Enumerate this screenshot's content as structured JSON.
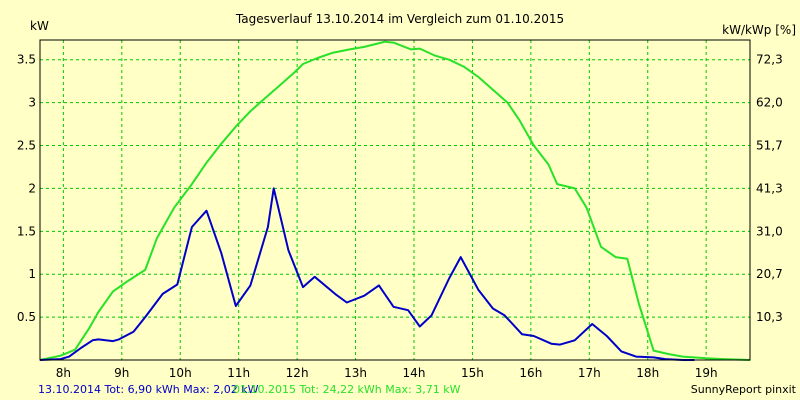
{
  "chart_data": {
    "type": "line",
    "title": "Tagesverlauf 13.10.2014 im Vergleich zum 01.10.2015",
    "ylabel": "kW",
    "ylabel_right": "kW/kWp [%]",
    "ylim": [
      0,
      3.73
    ],
    "xlim": [
      7.6,
      19.75
    ],
    "yticks": [
      "0.5",
      "1",
      "1.5",
      "2",
      "2.5",
      "3",
      "3.5"
    ],
    "yticks_right": [
      "10,3",
      "20,7",
      "31,0",
      "41,3",
      "51,7",
      "62,0",
      "72,3"
    ],
    "xticks": [
      "8h",
      "9h",
      "10h",
      "11h",
      "12h",
      "13h",
      "14h",
      "15h",
      "16h",
      "17h",
      "18h",
      "19h"
    ],
    "grid": true,
    "series": [
      {
        "name": "13.10.2014",
        "color": "#0000c8",
        "x": [
          7.6,
          7.95,
          8.1,
          8.3,
          8.5,
          8.6,
          8.85,
          8.95,
          9.2,
          9.4,
          9.7,
          9.95,
          10.2,
          10.45,
          10.7,
          10.95,
          11.2,
          11.5,
          11.6,
          11.85,
          12.1,
          12.3,
          12.65,
          12.85,
          13.15,
          13.4,
          13.65,
          13.9,
          14.1,
          14.3,
          14.6,
          14.8,
          15.1,
          15.35,
          15.55,
          15.85,
          16.05,
          16.35,
          16.5,
          16.75,
          17.05,
          17.3,
          17.55,
          17.8,
          18.1,
          18.3,
          18.6,
          18.8
        ],
        "values": [
          0,
          0.01,
          0.04,
          0.14,
          0.23,
          0.24,
          0.22,
          0.24,
          0.33,
          0.5,
          0.77,
          0.88,
          1.55,
          1.74,
          1.25,
          0.63,
          0.87,
          1.55,
          2.0,
          1.28,
          0.85,
          0.97,
          0.77,
          0.67,
          0.75,
          0.87,
          0.62,
          0.58,
          0.39,
          0.52,
          0.95,
          1.2,
          0.82,
          0.6,
          0.52,
          0.3,
          0.28,
          0.19,
          0.18,
          0.23,
          0.42,
          0.28,
          0.1,
          0.04,
          0.03,
          0.01,
          0,
          0
        ]
      },
      {
        "name": "01.10.2015",
        "color": "#28e128",
        "x": [
          7.6,
          7.95,
          8.2,
          8.45,
          8.6,
          8.85,
          9.1,
          9.4,
          9.6,
          9.9,
          10.2,
          10.45,
          10.7,
          10.95,
          11.2,
          11.45,
          11.7,
          11.95,
          12.1,
          12.35,
          12.6,
          12.9,
          13.15,
          13.5,
          13.65,
          13.95,
          14.1,
          14.35,
          14.6,
          14.85,
          15.1,
          15.35,
          15.6,
          15.8,
          16.05,
          16.3,
          16.45,
          16.75,
          16.95,
          17.2,
          17.45,
          17.65,
          17.85,
          18.1,
          18.35,
          18.6,
          19.0,
          19.3,
          19.75
        ],
        "values": [
          0,
          0.05,
          0.12,
          0.38,
          0.56,
          0.8,
          0.92,
          1.05,
          1.42,
          1.78,
          2.05,
          2.3,
          2.52,
          2.72,
          2.9,
          3.05,
          3.2,
          3.35,
          3.45,
          3.52,
          3.58,
          3.62,
          3.65,
          3.71,
          3.7,
          3.62,
          3.63,
          3.55,
          3.5,
          3.42,
          3.3,
          3.15,
          3.0,
          2.8,
          2.5,
          2.28,
          2.05,
          2.0,
          1.78,
          1.32,
          1.2,
          1.18,
          0.65,
          0.11,
          0.07,
          0.04,
          0.02,
          0.01,
          0.0
        ]
      }
    ]
  },
  "footer": {
    "series1_text": "13.10.2014 Tot: 6,90 kWh Max: 2,02 kW",
    "series2_text": "01.10.2015 Tot: 24,22 kWh Max: 3,71 kW",
    "credit": "SunnyReport pinxit"
  },
  "colors": {
    "background": "#ffffc6",
    "grid": "#00c800",
    "axis": "#000000"
  }
}
